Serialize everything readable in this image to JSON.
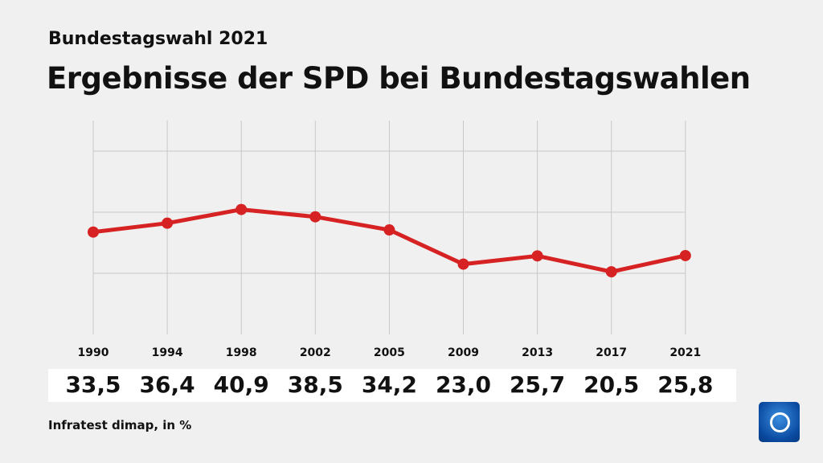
{
  "header": {
    "subtitle": "Bundestagswahl 2021",
    "title": "Ergebnisse der SPD bei Bundestagswahlen"
  },
  "footer": {
    "source": "Infratest dimap, in %"
  },
  "colors": {
    "line": "#d62222",
    "grid": "#c8c8c8"
  },
  "chart_data": {
    "type": "line",
    "title": "Ergebnisse der SPD bei Bundestagswahlen",
    "categories": [
      "1990",
      "1994",
      "1998",
      "2002",
      "2005",
      "2009",
      "2013",
      "2017",
      "2021"
    ],
    "series": [
      {
        "name": "SPD",
        "values": [
          33.5,
          36.4,
          40.9,
          38.5,
          34.2,
          23.0,
          25.7,
          20.5,
          25.8
        ]
      }
    ],
    "value_labels": [
      "33,5",
      "36,4",
      "40,9",
      "38,5",
      "34,2",
      "23,0",
      "25,7",
      "20,5",
      "25,8"
    ],
    "ylim": [
      0,
      70
    ],
    "gridlines": [
      20,
      40,
      60
    ],
    "xlabel": "",
    "ylabel": "in %"
  }
}
